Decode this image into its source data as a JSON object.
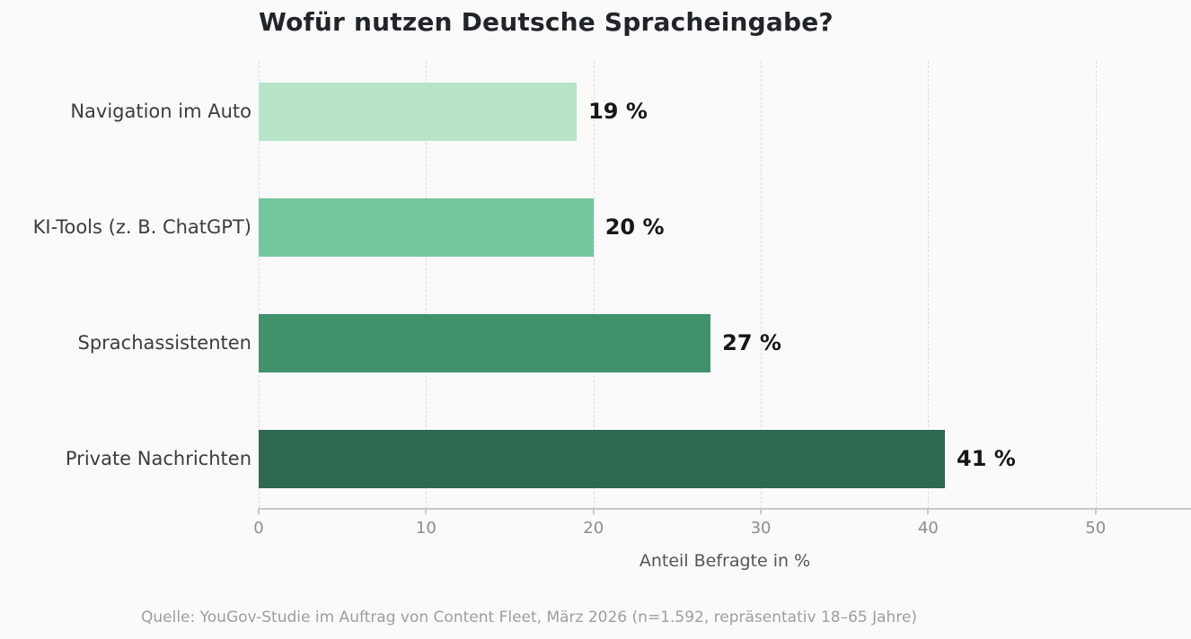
{
  "title": "Wofür nutzen Deutsche Spracheingabe?",
  "footer": "Quelle: YouGov-Studie im Auftrag von Content Fleet, März 2026 (n=1.592, repräsentativ 18–65 Jahre)",
  "chart_data": {
    "type": "bar",
    "orientation": "horizontal",
    "title": "Wofür nutzen Deutsche Spracheingabe?",
    "categories": [
      "Navigation im Auto",
      "KI-Tools (z. B. ChatGPT)",
      "Sprachassistenten",
      "Private Nachrichten"
    ],
    "values": [
      19,
      20,
      27,
      41
    ],
    "value_labels": [
      "19 %",
      "20 %",
      "27 %",
      "41 %"
    ],
    "bar_colors": [
      "#b7e4c7",
      "#74c69d",
      "#40916c",
      "#2d6a4f"
    ],
    "xlabel": "Anteil Befragte in %",
    "xticks": [
      0,
      10,
      20,
      30,
      40,
      50
    ],
    "xlim": [
      0,
      55.7
    ],
    "grid": "vertical-dashed",
    "legend": "none",
    "background_color": "#fafafa",
    "source": "Quelle: YouGov-Studie im Auftrag von Content Fleet, März 2026 (n=1.592, repräsentativ 18–65 Jahre)"
  }
}
